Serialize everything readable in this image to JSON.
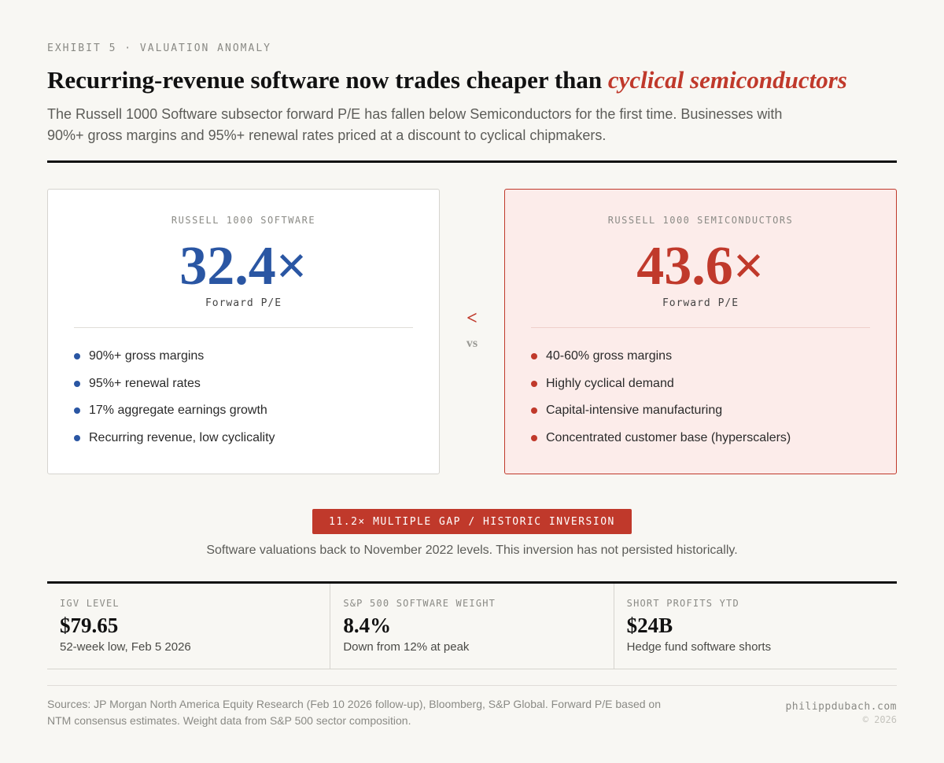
{
  "header": {
    "eyebrow": "EXHIBIT 5 · VALUATION ANOMALY",
    "headline_prefix": "Recurring-revenue software now trades cheaper than ",
    "headline_accent": "cyclical semiconductors",
    "dek": "The Russell 1000 Software subsector forward P/E has fallen below Semiconductors for the first time. Businesses with 90%+ gross margins and 95%+ renewal rates priced at a discount to cyclical chipmakers."
  },
  "comparison": {
    "left": {
      "label": "RUSSELL 1000 SOFTWARE",
      "value": "32.4×",
      "metric": "Forward P/E",
      "bullets": [
        "90%+ gross margins",
        "95%+ renewal rates",
        "17% aggregate earnings growth",
        "Recurring revenue, low cyclicality"
      ]
    },
    "operator": "<",
    "versus": "vs",
    "right": {
      "label": "RUSSELL 1000 SEMICONDUCTORS",
      "value": "43.6×",
      "metric": "Forward P/E",
      "bullets": [
        "40-60% gross margins",
        "Highly cyclical demand",
        "Capital-intensive manufacturing",
        "Concentrated customer base (hyperscalers)"
      ]
    }
  },
  "callout": {
    "badge": "11.2× MULTIPLE GAP / HISTORIC INVERSION",
    "note": "Software valuations back to November 2022 levels. This inversion has not persisted historically."
  },
  "stats": [
    {
      "label": "IGV LEVEL",
      "value": "$79.65",
      "note": "52-week low, Feb 5 2026"
    },
    {
      "label": "S&P 500 SOFTWARE WEIGHT",
      "value": "8.4%",
      "note": "Down from 12% at peak"
    },
    {
      "label": "SHORT PROFITS YTD",
      "value": "$24B",
      "note": "Hedge fund software shorts"
    }
  ],
  "footer": {
    "sources": "Sources: JP Morgan North America Equity Research (Feb 10 2026 follow-up), Bloomberg, S&P Global. Forward P/E based on NTM consensus estimates. Weight data from S&P 500 sector composition.",
    "site": "philippdubach.com",
    "copyright": "© 2026"
  },
  "colors": {
    "accent_red": "#c0392b",
    "software_blue": "#2a56a3",
    "background": "#f8f7f3",
    "semis_card_bg": "#fcecea"
  }
}
